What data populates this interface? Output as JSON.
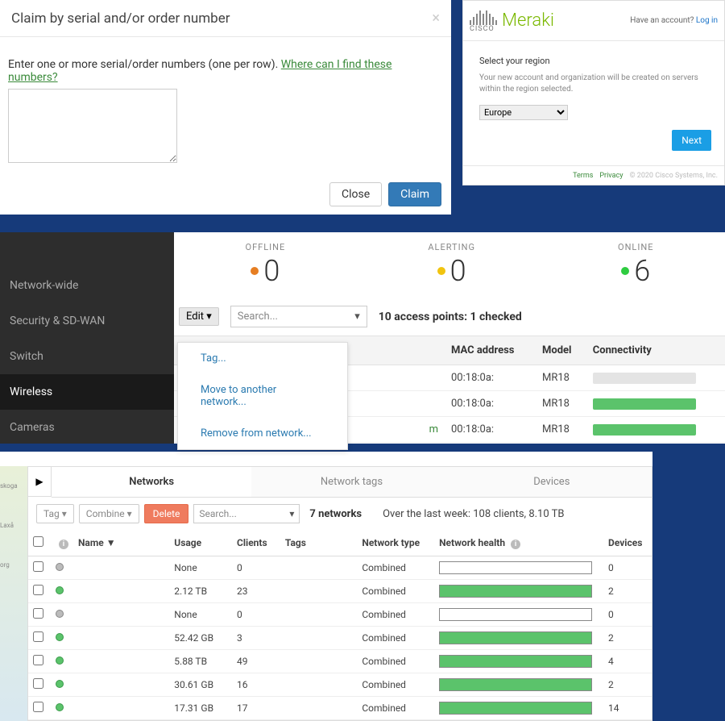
{
  "claim": {
    "title": "Claim by serial and/or order number",
    "prompt_pre": "Enter one or more serial/order numbers (one per row). ",
    "find_link": "Where can I find these numbers?",
    "close_label": "Close",
    "claim_label": "Claim"
  },
  "region": {
    "brand_small": "CISCO",
    "brand_large": "Meraki",
    "have_account": "Have an account? ",
    "login": "Log in",
    "select_label": "Select your region",
    "desc": "Your new account and organization will be created on servers within the region selected.",
    "selected": "Europe",
    "next": "Next",
    "terms": "Terms",
    "privacy": "Privacy",
    "copyright": "© 2020 Cisco Systems, Inc."
  },
  "ap": {
    "nav": [
      "Network-wide",
      "Security & SD-WAN",
      "Switch",
      "Wireless",
      "Cameras"
    ],
    "nav_active_index": 3,
    "status": {
      "offline_label": "OFFLINE",
      "offline": "0",
      "offline_dot": "#c96a2b",
      "alerting_label": "ALERTING",
      "alerting": "0",
      "alerting_dot": "#d8b324",
      "online_label": "ONLINE",
      "online": "6",
      "online_dot": "#3bbf4a"
    },
    "edit_label": "Edit ▾",
    "search_placeholder": "Search...",
    "summary": "10 access points: 1 checked",
    "menu": [
      "Tag...",
      "Move to another network...",
      "Remove from network..."
    ],
    "cols": {
      "mac": "MAC address",
      "model": "Model",
      "conn": "Connectivity"
    },
    "rows": [
      {
        "trail": "",
        "mac": "00:18:0a:",
        "model": "MR18",
        "conn_color": "#e4e4e4"
      },
      {
        "trail": "",
        "mac": "00:18:0a:",
        "model": "MR18",
        "conn_color": "#5bc36b"
      },
      {
        "trail": "m",
        "mac": "00:18:0a:",
        "model": "MR18",
        "conn_color": "#5bc36b"
      }
    ]
  },
  "net": {
    "tabs": [
      "Networks",
      "Network tags",
      "Devices"
    ],
    "active_tab_index": 0,
    "toolbar": {
      "tag": "Tag ▾",
      "combine": "Combine ▾",
      "delete": "Delete",
      "search": "Search...",
      "count": "7 networks",
      "stats": "Over the last week: 108 clients, 8.10 TB"
    },
    "cols": [
      "",
      "",
      "Name ▼",
      "Usage",
      "Clients",
      "Tags",
      "Network type",
      "Network health",
      "Devices"
    ],
    "rows": [
      {
        "on": false,
        "name": "",
        "usage": "None",
        "clients": "0",
        "tags": "",
        "type": "Combined",
        "health": 0,
        "devices": "0"
      },
      {
        "on": true,
        "name": "",
        "usage": "2.12 TB",
        "clients": "23",
        "tags": "",
        "type": "Combined",
        "health": 100,
        "devices": "2"
      },
      {
        "on": false,
        "name": "",
        "usage": "None",
        "clients": "0",
        "tags": "",
        "type": "Combined",
        "health": 0,
        "devices": "0"
      },
      {
        "on": true,
        "name": "",
        "usage": "52.42 GB",
        "clients": "3",
        "tags": "",
        "type": "Combined",
        "health": 100,
        "devices": "2"
      },
      {
        "on": true,
        "name": "",
        "usage": "5.88 TB",
        "clients": "49",
        "tags": "",
        "type": "Combined",
        "health": 100,
        "devices": "4"
      },
      {
        "on": true,
        "name": "",
        "usage": "30.61 GB",
        "clients": "16",
        "tags": "",
        "type": "Combined",
        "health": 100,
        "devices": "2"
      },
      {
        "on": true,
        "name": "",
        "usage": "17.31 GB",
        "clients": "17",
        "tags": "",
        "type": "Combined",
        "health": 100,
        "devices": "14"
      }
    ],
    "map_labels": [
      "skoga",
      "Laxå",
      "org"
    ]
  }
}
